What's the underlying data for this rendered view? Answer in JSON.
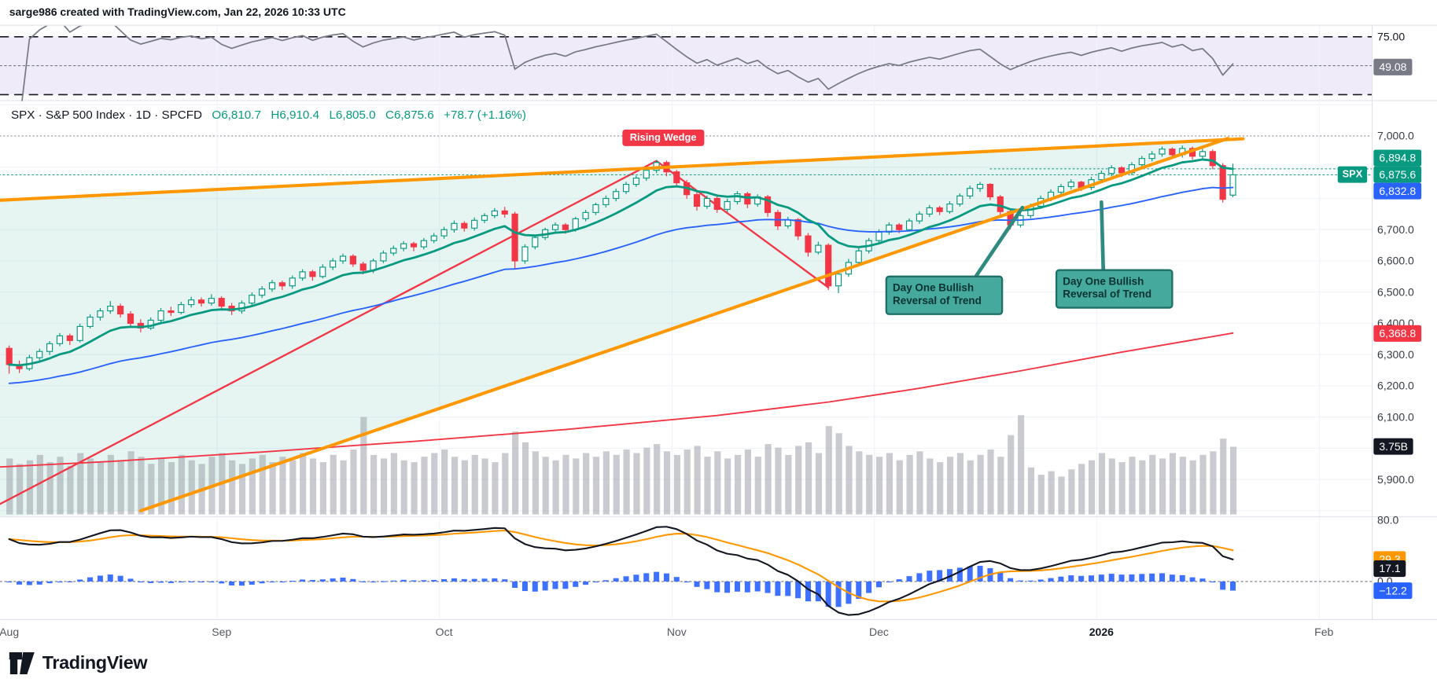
{
  "attribution": "sarge986 created with TradingView.com, Jan 22, 2026 10:33 UTC",
  "legend": {
    "title": "SPX · S&P 500 Index · 1D · SPCFD",
    "ohlc": [
      "O6,810.7",
      "H6,910.4",
      "L6,805.0",
      "C6,875.6",
      "+78.7 (+1.16%)"
    ]
  },
  "annotations": {
    "rising_wedge": "Rising Wedge",
    "callout1": "Day One Bullish Reversal of Trend",
    "callout2": "Day One Bullish Reversal of Trend"
  },
  "logo_text": "TradingView",
  "colors": {
    "up": "#089981",
    "down": "#f23645",
    "blue_ma": "#2962ff",
    "red_ma": "#f23645",
    "wedge": "#ff9800",
    "volume": "#9598a1",
    "rsi_line": "#787b86",
    "macd_line": "#131722",
    "signal_line": "#ff9800",
    "hist": "#2962ff"
  },
  "price_axis": {
    "labels": [
      {
        "text": "7,000.0",
        "price": 7000
      },
      {
        "text": "6,700.0",
        "price": 6700
      },
      {
        "text": "6,600.0",
        "price": 6600
      },
      {
        "text": "6,500.0",
        "price": 6500
      },
      {
        "text": "6,400.0",
        "price": 6400
      },
      {
        "text": "6,300.0",
        "price": 6300
      },
      {
        "text": "6,200.0",
        "price": 6200
      },
      {
        "text": "6,100.0",
        "price": 6100
      },
      {
        "text": "5,900.0",
        "price": 5900
      }
    ],
    "badges": [
      {
        "text": "6,894.8",
        "bg": "#089981",
        "pane": "main",
        "price": 6894.8
      },
      {
        "text": "6,875.6",
        "bg": "#089981",
        "pane": "main",
        "price": 6875.6,
        "tag": "SPX",
        "anchor": true
      },
      {
        "text": "6,832.8",
        "bg": "#2962ff",
        "pane": "main",
        "price": 6832.8
      },
      {
        "text": "6,368.8",
        "bg": "#f23645",
        "pane": "main",
        "price": 6368.8
      },
      {
        "text": "3.75B",
        "bg": "#131722",
        "pane": "vol",
        "vol": 3.75
      },
      {
        "text": "49.08",
        "bg": "#787b86",
        "pane": "rsi",
        "value": 49.08
      },
      {
        "text": "29.3",
        "bg": "#ff9800",
        "pane": "macd",
        "value": 29.3
      },
      {
        "text": "17.1",
        "bg": "#131722",
        "pane": "macd",
        "value": 17.1
      },
      {
        "text": "−12.2",
        "bg": "#2962ff",
        "pane": "macd",
        "value": -12.2
      }
    ],
    "rsi_labels": [
      {
        "text": "75.00",
        "value": 75
      }
    ],
    "macd_labels": [
      {
        "text": "80.0",
        "value": 80
      },
      {
        "text": "0.0",
        "value": 0
      }
    ]
  },
  "chart_data": {
    "type": "candlestick",
    "symbol": "SPX",
    "interval": "1D",
    "exchange": "SPCFD",
    "last": {
      "open": 6810.7,
      "high": 6910.4,
      "low": 6805.0,
      "close": 6875.6,
      "change": 78.7,
      "change_pct": 1.16,
      "volume_label": "3.75B"
    },
    "y_range": [
      5782,
      7112
    ],
    "x_axis_months": [
      {
        "label": "Aug",
        "index": 0
      },
      {
        "label": "Sep",
        "index": 21
      },
      {
        "label": "Oct",
        "index": 43
      },
      {
        "label": "Nov",
        "index": 66
      },
      {
        "label": "Dec",
        "index": 86
      },
      {
        "label": "2026",
        "index": 108,
        "year": true
      },
      {
        "label": "Feb",
        "index": 130
      }
    ],
    "candles": [
      [
        6320,
        6328,
        6240,
        6268,
        3.1
      ],
      [
        6268,
        6280,
        6242,
        6255,
        2.8
      ],
      [
        6255,
        6298,
        6250,
        6290,
        3.0
      ],
      [
        6290,
        6318,
        6282,
        6310,
        3.3
      ],
      [
        6310,
        6342,
        6300,
        6335,
        2.9
      ],
      [
        6335,
        6368,
        6328,
        6360,
        3.2
      ],
      [
        6360,
        6366,
        6332,
        6345,
        2.7
      ],
      [
        6345,
        6398,
        6340,
        6390,
        3.4
      ],
      [
        6390,
        6428,
        6385,
        6420,
        3.1
      ],
      [
        6420,
        6448,
        6410,
        6440,
        2.9
      ],
      [
        6440,
        6470,
        6432,
        6455,
        3.3
      ],
      [
        6455,
        6462,
        6420,
        6430,
        3.0
      ],
      [
        6430,
        6438,
        6390,
        6400,
        3.5
      ],
      [
        6400,
        6412,
        6372,
        6385,
        3.2
      ],
      [
        6385,
        6418,
        6380,
        6410,
        2.8
      ],
      [
        6410,
        6448,
        6402,
        6440,
        3.1
      ],
      [
        6440,
        6452,
        6425,
        6435,
        2.9
      ],
      [
        6435,
        6468,
        6430,
        6460,
        3.3
      ],
      [
        6460,
        6484,
        6452,
        6475,
        3.0
      ],
      [
        6475,
        6482,
        6455,
        6465,
        2.8
      ],
      [
        6465,
        6492,
        6458,
        6480,
        3.2
      ],
      [
        6480,
        6486,
        6448,
        6455,
        3.4
      ],
      [
        6455,
        6464,
        6428,
        6440,
        3.0
      ],
      [
        6440,
        6472,
        6432,
        6465,
        2.8
      ],
      [
        6465,
        6498,
        6458,
        6490,
        3.1
      ],
      [
        6490,
        6518,
        6482,
        6510,
        3.3
      ],
      [
        6510,
        6538,
        6502,
        6530,
        2.9
      ],
      [
        6530,
        6536,
        6508,
        6520,
        3.2
      ],
      [
        6520,
        6552,
        6512,
        6545,
        3.0
      ],
      [
        6545,
        6572,
        6538,
        6565,
        3.4
      ],
      [
        6565,
        6570,
        6538,
        6550,
        3.1
      ],
      [
        6550,
        6588,
        6545,
        6580,
        2.9
      ],
      [
        6580,
        6608,
        6572,
        6600,
        3.3
      ],
      [
        6600,
        6622,
        6592,
        6615,
        3.0
      ],
      [
        6615,
        6620,
        6582,
        6590,
        3.6
      ],
      [
        6590,
        6596,
        6558,
        6570,
        5.4
      ],
      [
        6570,
        6606,
        6562,
        6600,
        3.3
      ],
      [
        6600,
        6632,
        6594,
        6625,
        3.1
      ],
      [
        6625,
        6648,
        6618,
        6640,
        3.4
      ],
      [
        6640,
        6662,
        6632,
        6655,
        3.0
      ],
      [
        6655,
        6660,
        6632,
        6645,
        2.9
      ],
      [
        6645,
        6672,
        6638,
        6665,
        3.2
      ],
      [
        6665,
        6688,
        6658,
        6680,
        3.4
      ],
      [
        6680,
        6708,
        6672,
        6700,
        3.6
      ],
      [
        6700,
        6728,
        6692,
        6720,
        3.2
      ],
      [
        6720,
        6726,
        6695,
        6705,
        3.0
      ],
      [
        6705,
        6738,
        6698,
        6730,
        3.3
      ],
      [
        6730,
        6752,
        6722,
        6745,
        3.1
      ],
      [
        6745,
        6768,
        6738,
        6760,
        2.9
      ],
      [
        6760,
        6772,
        6740,
        6750,
        3.4
      ],
      [
        6750,
        6756,
        6575,
        6600,
        4.6
      ],
      [
        6600,
        6652,
        6592,
        6645,
        4.0
      ],
      [
        6645,
        6682,
        6638,
        6675,
        3.5
      ],
      [
        6675,
        6705,
        6668,
        6700,
        3.2
      ],
      [
        6700,
        6722,
        6692,
        6715,
        3.0
      ],
      [
        6715,
        6720,
        6688,
        6700,
        3.3
      ],
      [
        6700,
        6740,
        6695,
        6735,
        3.1
      ],
      [
        6735,
        6762,
        6728,
        6755,
        3.4
      ],
      [
        6755,
        6785,
        6748,
        6780,
        3.2
      ],
      [
        6780,
        6808,
        6772,
        6800,
        3.5
      ],
      [
        6800,
        6830,
        6792,
        6822,
        3.3
      ],
      [
        6822,
        6852,
        6815,
        6845,
        3.6
      ],
      [
        6845,
        6872,
        6838,
        6865,
        3.4
      ],
      [
        6865,
        6898,
        6858,
        6890,
        3.7
      ],
      [
        6890,
        6922,
        6882,
        6915,
        3.9
      ],
      [
        6915,
        6920,
        6872,
        6885,
        3.5
      ],
      [
        6885,
        6890,
        6840,
        6850,
        3.3
      ],
      [
        6850,
        6858,
        6800,
        6812,
        3.6
      ],
      [
        6812,
        6820,
        6762,
        6775,
        3.8
      ],
      [
        6775,
        6808,
        6768,
        6800,
        3.2
      ],
      [
        6800,
        6812,
        6755,
        6765,
        3.5
      ],
      [
        6765,
        6798,
        6758,
        6790,
        3.1
      ],
      [
        6790,
        6822,
        6782,
        6815,
        3.3
      ],
      [
        6815,
        6820,
        6770,
        6782,
        3.6
      ],
      [
        6782,
        6812,
        6775,
        6805,
        3.2
      ],
      [
        6805,
        6810,
        6742,
        6755,
        3.9
      ],
      [
        6755,
        6762,
        6700,
        6712,
        3.7
      ],
      [
        6712,
        6740,
        6705,
        6732,
        3.3
      ],
      [
        6732,
        6736,
        6668,
        6680,
        3.8
      ],
      [
        6680,
        6688,
        6615,
        6628,
        4.0
      ],
      [
        6628,
        6660,
        6622,
        6650,
        3.4
      ],
      [
        6650,
        6655,
        6508,
        6520,
        4.9
      ],
      [
        6520,
        6568,
        6498,
        6558,
        4.5
      ],
      [
        6558,
        6605,
        6550,
        6595,
        3.8
      ],
      [
        6595,
        6640,
        6588,
        6632,
        3.5
      ],
      [
        6632,
        6672,
        6625,
        6665,
        3.3
      ],
      [
        6665,
        6700,
        6658,
        6692,
        3.2
      ],
      [
        6692,
        6722,
        6685,
        6715,
        3.4
      ],
      [
        6715,
        6720,
        6690,
        6700,
        3.0
      ],
      [
        6700,
        6735,
        6695,
        6728,
        3.3
      ],
      [
        6728,
        6758,
        6720,
        6750,
        3.5
      ],
      [
        6750,
        6778,
        6742,
        6770,
        3.1
      ],
      [
        6770,
        6775,
        6748,
        6758,
        2.9
      ],
      [
        6758,
        6790,
        6752,
        6782,
        3.2
      ],
      [
        6782,
        6815,
        6775,
        6808,
        3.4
      ],
      [
        6808,
        6840,
        6800,
        6832,
        3.0
      ],
      [
        6832,
        6852,
        6822,
        6845,
        3.3
      ],
      [
        6845,
        6848,
        6795,
        6805,
        3.6
      ],
      [
        6805,
        6810,
        6748,
        6758,
        3.2
      ],
      [
        6758,
        6762,
        6702,
        6715,
        4.4
      ],
      [
        6715,
        6752,
        6708,
        6745,
        5.5
      ],
      [
        6745,
        6782,
        6738,
        6775,
        2.6
      ],
      [
        6775,
        6808,
        6768,
        6800,
        2.2
      ],
      [
        6800,
        6828,
        6792,
        6820,
        2.4
      ],
      [
        6820,
        6845,
        6812,
        6838,
        2.1
      ],
      [
        6838,
        6860,
        6830,
        6852,
        2.5
      ],
      [
        6852,
        6855,
        6825,
        6835,
        2.8
      ],
      [
        6835,
        6868,
        6828,
        6860,
        3.0
      ],
      [
        6860,
        6888,
        6852,
        6880,
        3.4
      ],
      [
        6880,
        6905,
        6872,
        6898,
        3.1
      ],
      [
        6898,
        6902,
        6870,
        6882,
        2.9
      ],
      [
        6882,
        6915,
        6875,
        6908,
        3.2
      ],
      [
        6908,
        6935,
        6900,
        6928,
        3.0
      ],
      [
        6928,
        6950,
        6920,
        6942,
        3.3
      ],
      [
        6942,
        6965,
        6935,
        6958,
        3.1
      ],
      [
        6958,
        6962,
        6930,
        6940,
        3.4
      ],
      [
        6940,
        6968,
        6932,
        6960,
        3.2
      ],
      [
        6960,
        6965,
        6925,
        6935,
        3.0
      ],
      [
        6935,
        6958,
        6928,
        6950,
        3.3
      ],
      [
        6950,
        6955,
        6895,
        6905,
        3.5
      ],
      [
        6905,
        6912,
        6788,
        6797,
        4.2
      ],
      [
        6810.7,
        6910.4,
        6805,
        6875.6,
        3.75
      ]
    ],
    "overlays": {
      "ma_fast_teal": {
        "type": "ema",
        "length": 10,
        "color": "#089981"
      },
      "ma_mid_blue": {
        "type": "ema",
        "length": 40,
        "color": "#2962ff",
        "last_value": 6832.8
      },
      "ma_slow_red": {
        "color": "#f23645",
        "last_value": 6368.8,
        "points": [
          [
            -1,
            5940
          ],
          [
            10,
            5958
          ],
          [
            25,
            5988
          ],
          [
            40,
            6022
          ],
          [
            55,
            6060
          ],
          [
            70,
            6105
          ],
          [
            81,
            6148
          ],
          [
            90,
            6192
          ],
          [
            100,
            6248
          ],
          [
            110,
            6308
          ],
          [
            121,
            6368.8
          ]
        ]
      }
    },
    "drawings": {
      "wedge_upper_orange": [
        [
          -1,
          6794
        ],
        [
          122,
          6991
        ]
      ],
      "wedge_lower_orange": [
        [
          13,
          5800
        ],
        [
          120.5,
          6992
        ]
      ],
      "trend_up_red": [
        [
          -1,
          5820
        ],
        [
          64,
          6920
        ]
      ],
      "trend_down_red": [
        [
          64,
          6920
        ],
        [
          81,
          6515
        ]
      ],
      "price_lines": [
        {
          "price": 6894.8,
          "color": "#089981",
          "from_index": 97
        },
        {
          "price": 6875.6,
          "color": "#089981",
          "from_index": -1
        }
      ]
    },
    "indicators": {
      "rsi": {
        "length": 14,
        "upper_band": 75,
        "lower_band": 25,
        "mid": 50,
        "current": 49.08
      },
      "macd": {
        "fast": 12,
        "slow": 26,
        "signal": 9,
        "macd_current": 17.1,
        "signal_current": 29.3,
        "hist_current": -12.2
      }
    }
  }
}
